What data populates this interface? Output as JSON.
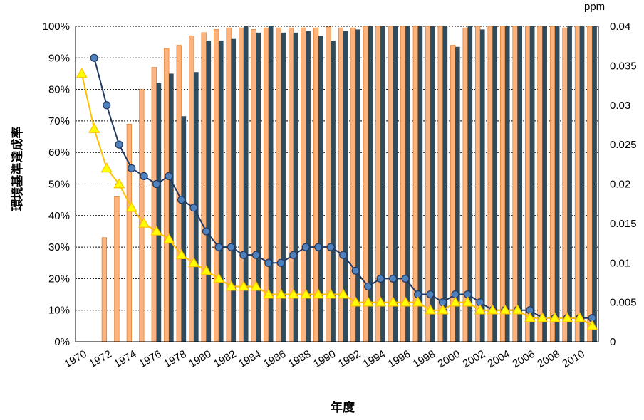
{
  "chart_data": {
    "type": "bar+line",
    "xlabel": "年度",
    "ylabel_left": "環境基準達成率",
    "ylabel_right": "ppm",
    "y_left_ticks": [
      "0%",
      "10%",
      "20%",
      "30%",
      "40%",
      "50%",
      "60%",
      "70%",
      "80%",
      "90%",
      "100%"
    ],
    "y_right_ticks": [
      "0",
      "0.005",
      "0.01",
      "0.015",
      "0.02",
      "0.025",
      "0.03",
      "0.035",
      "0.04"
    ],
    "x_tick_labels": [
      "1970",
      "1972",
      "1974",
      "1976",
      "1978",
      "1980",
      "1982",
      "1984",
      "1986",
      "1988",
      "1990",
      "1992",
      "1994",
      "1996",
      "1998",
      "2000",
      "2002",
      "2004",
      "2006",
      "2008",
      "2010"
    ],
    "ylim_left": [
      0,
      100
    ],
    "ylim_right": [
      0,
      0.04
    ],
    "grid": "horizontal-dashed",
    "years": [
      1970,
      1971,
      1972,
      1973,
      1974,
      1975,
      1976,
      1977,
      1978,
      1979,
      1980,
      1981,
      1982,
      1983,
      1984,
      1985,
      1986,
      1987,
      1988,
      1989,
      1990,
      1991,
      1992,
      1993,
      1994,
      1995,
      1996,
      1997,
      1998,
      1999,
      2000,
      2001,
      2002,
      2003,
      2004,
      2005,
      2006,
      2007,
      2008,
      2009,
      2010,
      2011
    ],
    "series": [
      {
        "kind": "bar",
        "axis": "left",
        "color": "#fbb37f",
        "stroke": "#e46c0a",
        "values": [
          null,
          null,
          33,
          46,
          69,
          80,
          87,
          93,
          94,
          97,
          98,
          99,
          99.5,
          99.5,
          99,
          99.5,
          99.5,
          99.5,
          99.5,
          99.5,
          99.8,
          99.5,
          99.5,
          100,
          100,
          100,
          100,
          100,
          100,
          100,
          94,
          99.5,
          100,
          100,
          100,
          100,
          100,
          100,
          100,
          99.5,
          100,
          100
        ]
      },
      {
        "kind": "bar",
        "axis": "left",
        "color": "#2f4b5c",
        "values": [
          null,
          null,
          null,
          null,
          null,
          null,
          82,
          85,
          71.5,
          85.5,
          95.5,
          95.5,
          96,
          100,
          98,
          100,
          98,
          98,
          98.5,
          97,
          95.5,
          98.5,
          99,
          100,
          100,
          100,
          100,
          100,
          100,
          100,
          93.5,
          100,
          99,
          100,
          100,
          100,
          100,
          100,
          100,
          100,
          100,
          100
        ]
      },
      {
        "kind": "line",
        "axis": "right",
        "color": "#1f3864",
        "marker": "circle",
        "marker_fill": "#4f81bd",
        "values": [
          null,
          0.036,
          0.03,
          0.025,
          0.022,
          0.021,
          0.02,
          0.021,
          0.018,
          0.017,
          0.014,
          0.012,
          0.012,
          0.011,
          0.011,
          0.01,
          0.01,
          0.011,
          0.012,
          0.012,
          0.012,
          0.011,
          0.009,
          0.007,
          0.008,
          0.008,
          0.008,
          0.006,
          0.006,
          0.005,
          0.006,
          0.006,
          0.005,
          0.004,
          0.004,
          0.004,
          0.004,
          0.003,
          0.003,
          0.003,
          0.003,
          0.003
        ]
      },
      {
        "kind": "line",
        "axis": "right",
        "color": "#ffc000",
        "marker": "triangle",
        "marker_fill": "#ffff00",
        "values": [
          0.034,
          0.027,
          0.022,
          0.02,
          0.017,
          0.015,
          0.014,
          0.013,
          0.011,
          0.01,
          0.009,
          0.008,
          0.007,
          0.007,
          0.007,
          0.006,
          0.006,
          0.006,
          0.006,
          0.006,
          0.006,
          0.006,
          0.005,
          0.005,
          0.005,
          0.005,
          0.005,
          0.005,
          0.004,
          0.004,
          0.005,
          0.005,
          0.004,
          0.004,
          0.004,
          0.004,
          0.003,
          0.003,
          0.003,
          0.003,
          0.003,
          0.002
        ]
      }
    ]
  }
}
